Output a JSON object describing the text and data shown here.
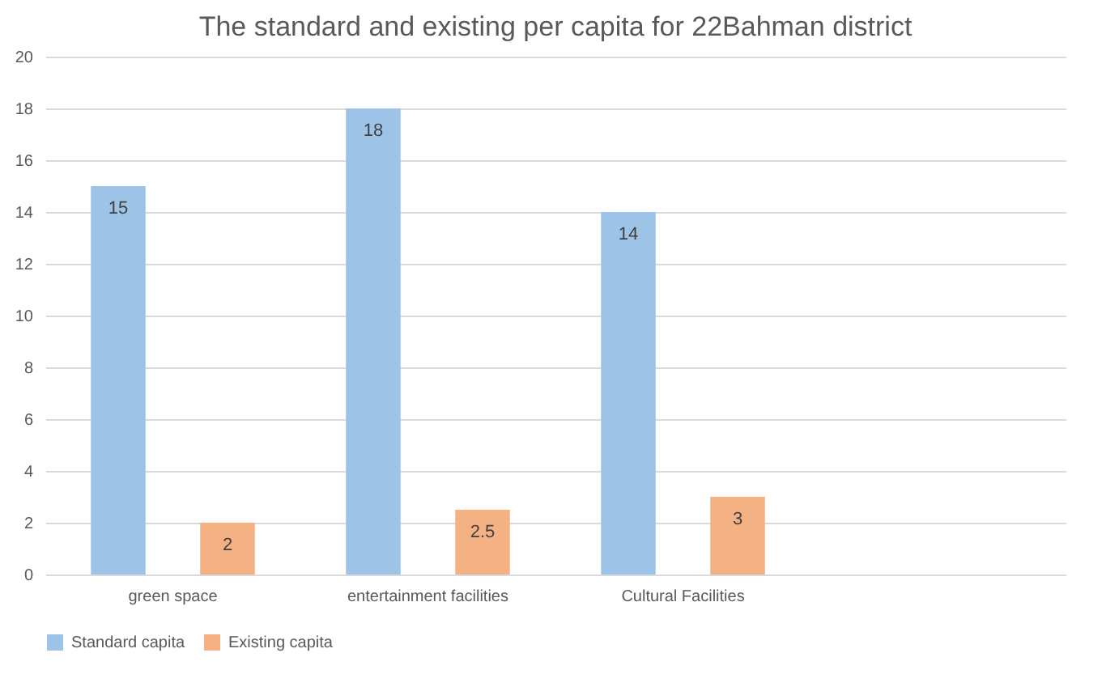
{
  "chart_data": {
    "type": "bar",
    "title": "The standard and existing per capita for 22Bahman district",
    "categories": [
      "green space",
      "entertainment facilities",
      "Cultural Facilities",
      null
    ],
    "series": [
      {
        "name": "Standard capita",
        "color": "#9dc3e6",
        "values": [
          15,
          18,
          14,
          null
        ]
      },
      {
        "name": "Existing capita",
        "color": "#f4b183",
        "values": [
          2,
          2.5,
          3,
          null
        ]
      }
    ],
    "ylim": [
      0,
      20
    ],
    "yticks": [
      0,
      2,
      4,
      6,
      8,
      10,
      12,
      14,
      16,
      18,
      20
    ],
    "grid": "y",
    "legend": "bottom",
    "data_labels": true
  }
}
